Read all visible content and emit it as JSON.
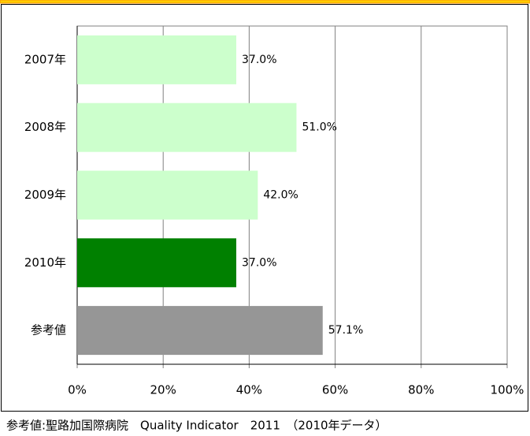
{
  "chart_data": {
    "type": "bar",
    "orientation": "horizontal",
    "categories": [
      "2007年",
      "2008年",
      "2009年",
      "2010年",
      "参考値"
    ],
    "values": [
      37,
      51,
      42,
      37,
      57.1
    ],
    "value_labels": [
      "37.0%",
      "51.0%",
      "42.0%",
      "37.0%",
      "57.1%"
    ],
    "colors": [
      "#ccffcc",
      "#ccffcc",
      "#ccffcc",
      "#008000",
      "#969696"
    ],
    "xlim": [
      0,
      100
    ],
    "xticks": [
      {
        "value": 0,
        "label": "0%"
      },
      {
        "value": 20,
        "label": "20%"
      },
      {
        "value": 40,
        "label": "40%"
      },
      {
        "value": 60,
        "label": "60%"
      },
      {
        "value": 80,
        "label": "80%"
      },
      {
        "value": 100,
        "label": "100%"
      }
    ],
    "grid": true,
    "note": "参考値:聖路加国際病院　Quality Indicator　2011　（2010年データ）"
  }
}
